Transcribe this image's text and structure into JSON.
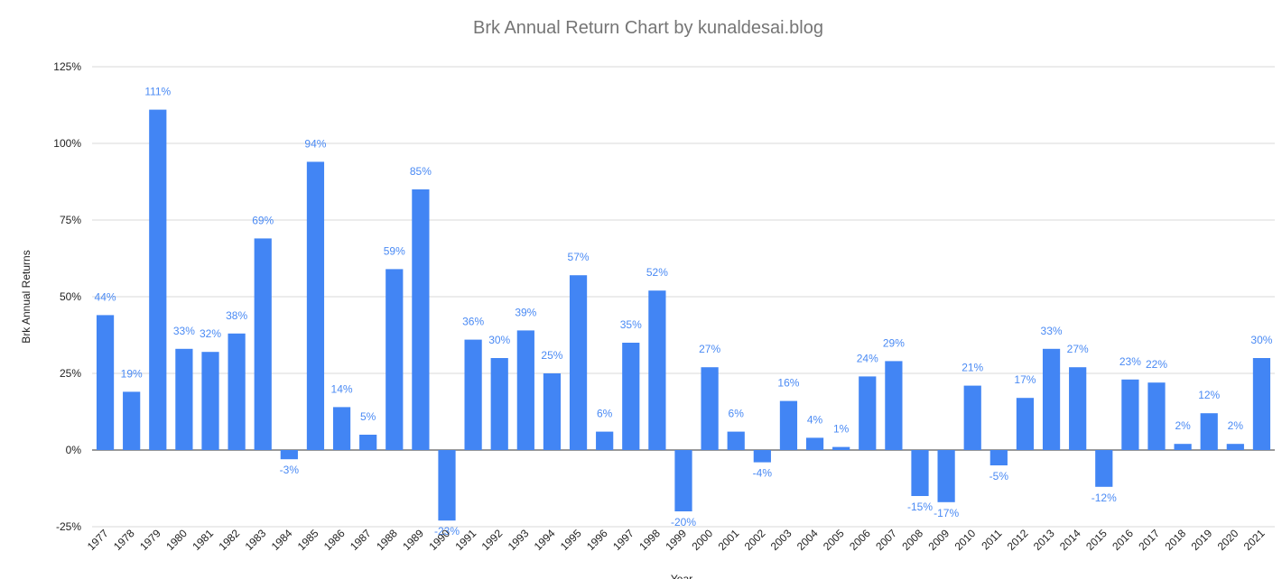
{
  "chart_data": {
    "type": "bar",
    "title": "Brk Annual Return Chart by kunaldesai.blog",
    "xlabel": "Year",
    "ylabel": "Brk Annual Returns",
    "ylim": [
      -25,
      125
    ],
    "yticks": [
      -25,
      0,
      25,
      50,
      75,
      100,
      125
    ],
    "ytick_labels": [
      "-25%",
      "0%",
      "25%",
      "50%",
      "75%",
      "100%",
      "125%"
    ],
    "grid": true,
    "bar_color": "#4285f4",
    "label_color": "#4a8af4",
    "categories": [
      "1977",
      "1978",
      "1979",
      "1980",
      "1981",
      "1982",
      "1983",
      "1984",
      "1985",
      "1986",
      "1987",
      "1988",
      "1989",
      "1990",
      "1991",
      "1992",
      "1993",
      "1994",
      "1995",
      "1996",
      "1997",
      "1998",
      "1999",
      "2000",
      "2001",
      "2002",
      "2003",
      "2004",
      "2005",
      "2006",
      "2007",
      "2008",
      "2009",
      "2010",
      "2011",
      "2012",
      "2013",
      "2014",
      "2015",
      "2016",
      "2017",
      "2018",
      "2019",
      "2020",
      "2021"
    ],
    "values": [
      44,
      19,
      111,
      33,
      32,
      38,
      69,
      -3,
      94,
      14,
      5,
      59,
      85,
      -23,
      36,
      30,
      39,
      25,
      57,
      6,
      35,
      52,
      -20,
      27,
      6,
      -4,
      16,
      4,
      1,
      24,
      29,
      -15,
      -17,
      21,
      -5,
      17,
      33,
      27,
      -12,
      23,
      22,
      2,
      12,
      2,
      30
    ],
    "data_labels": [
      "44%",
      "19%",
      "111%",
      "33%",
      "32%",
      "38%",
      "69%",
      "-3%",
      "94%",
      "14%",
      "5%",
      "59%",
      "85%",
      "-23%",
      "36%",
      "30%",
      "39%",
      "25%",
      "57%",
      "6%",
      "35%",
      "52%",
      "-20%",
      "27%",
      "6%",
      "-4%",
      "16%",
      "4%",
      "1%",
      "24%",
      "29%",
      "-15%",
      "-17%",
      "21%",
      "-5%",
      "17%",
      "33%",
      "27%",
      "-12%",
      "23%",
      "22%",
      "2%",
      "12%",
      "2%",
      "30%"
    ]
  }
}
